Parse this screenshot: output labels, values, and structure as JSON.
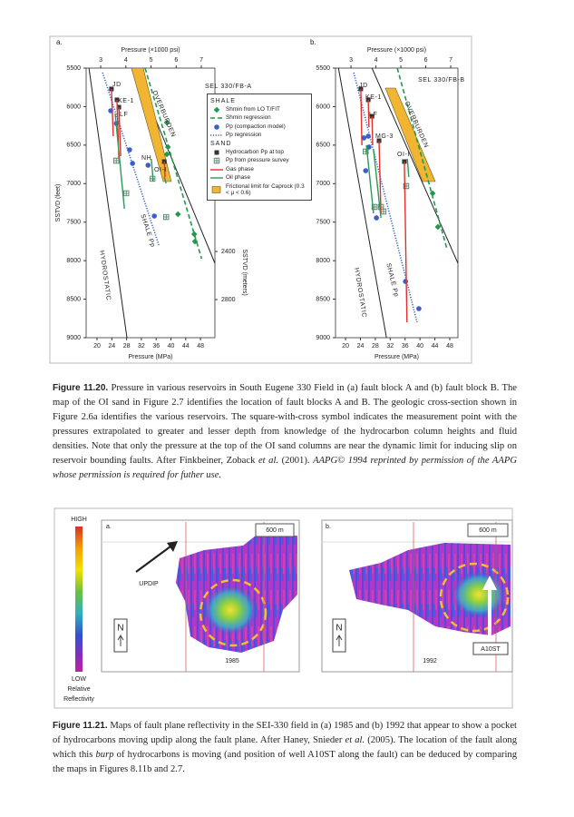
{
  "chart_data": [
    {
      "type": "scatter",
      "label": "a.",
      "x2label": "Pressure (×1000 psi)",
      "xlabel": "Pressure (MPa)",
      "ylabel": "SSTVD (feet)",
      "y2label": "SSTVD (meters)",
      "xlim": [
        17.05,
        51.9
      ],
      "xticks": [
        20,
        24,
        28,
        32,
        36,
        40,
        44,
        48
      ],
      "x2lim": [
        2.42,
        7.54
      ],
      "x2ticks": [
        3,
        4,
        5,
        6,
        7
      ],
      "ylim": [
        5500,
        9000
      ],
      "invert_y": true,
      "yticks": [
        5500,
        6000,
        6500,
        7000,
        7500,
        8000,
        8500,
        9000
      ],
      "y2lim": [
        875,
        3117
      ],
      "y2ticks": [
        2400,
        2800
      ],
      "legend": "upper right",
      "annotations": [
        "JD",
        "KE-1",
        "LF",
        "NH",
        "OI-I",
        "SHALE Pp",
        "HYDROSTATIC",
        "OVERBURDEN",
        "SEL 330/FB-A"
      ],
      "lines": [
        {
          "color": "#222222",
          "x": [
            17.8,
            28.1
          ],
          "values": [
            5500,
            9000
          ]
        },
        {
          "color": "#222222",
          "x": [
            30.1,
            51.9
          ],
          "values": [
            5500,
            8034
          ]
        }
      ],
      "series_groups": [
        {
          "title": "SHALE",
          "series": [
            {
              "name": "Shmin from LO T/FIT",
              "color": "#1f9a4c",
              "marker": "diamond",
              "x": [
                38.9,
                39.2,
                38.9,
                41.9,
                46.3,
                46.5
              ],
              "values": [
                6207,
                6525,
                6619,
                7397,
                7656,
                7751
              ]
            },
            {
              "name": "Shmin regression",
              "color": "#1f9a4c",
              "line": "dashed",
              "x": [
                33.0,
                48.3
              ],
              "values": [
                5500,
                7975
              ]
            },
            {
              "name": "Pp (compaction model)",
              "color": "#3a5fc8",
              "marker": "circle",
              "x": [
                23.7,
                25.2,
                28.8,
                29.6,
                33.8,
                35.5
              ],
              "values": [
                6054,
                6219,
                6561,
                6737,
                6761,
                7421
              ]
            },
            {
              "name": "Pp regression",
              "color": "#3a5fc8",
              "line": "dotted",
              "x": [
                21.5,
                36.7
              ],
              "values": [
                5559,
                7798
              ]
            }
          ]
        },
        {
          "title": "SAND",
          "series": [
            {
              "name": "Hydrocarbon Pp at top",
              "color": "#333333",
              "marker": "square",
              "x": [
                23.9,
                25.4,
                25.9,
                38.2
              ],
              "values": [
                5771,
                5912,
                6007,
                6714
              ]
            },
            {
              "name": "Pp from pressure survey",
              "color": "#3d7a5a",
              "marker": "square-cross",
              "x": [
                25.2,
                27.9,
                35.0,
                38.7
              ],
              "values": [
                6702,
                7126,
                6937,
                7433
              ]
            },
            {
              "name": "Gas phase",
              "color": "#e0302a",
              "line": "solid",
              "x": [
                23.9,
                24.4,
                null,
                25.4,
                25.9,
                null,
                25.9,
                26.4,
                null,
                38.2,
                38.4
              ],
              "values": [
                5771,
                6384,
                null,
                5912,
                6678,
                null,
                6007,
                6643,
                null,
                6714,
                6914
              ]
            },
            {
              "name": "Oil phase",
              "color": "#2a9a5a",
              "line": "solid",
              "x": [
                24.9,
                27.4,
                null,
                34.7,
                35.2,
                null,
                38.2,
                38.7
              ],
              "values": [
                6089,
                7327,
                null,
                6678,
                6973,
                null,
                6914,
                6997
              ]
            },
            {
              "name": "Frictional limit for Caprock (0.3 < μ < 0.6)",
              "color": "#f2b531",
              "kind": "polygon",
              "x": [
                29.3,
                32.5,
                40.1,
                37.9
              ],
              "values": [
                5500,
                5500,
                6973,
                6973
              ]
            }
          ]
        }
      ]
    },
    {
      "type": "scatter",
      "label": "b.",
      "x2label": "Pressure (×1000 psi)",
      "xlabel": "Pressure (MPa)",
      "xlim": [
        17.3,
        50.2
      ],
      "xticks": [
        20,
        24,
        28,
        32,
        36,
        40,
        44,
        48
      ],
      "x2lim": [
        2.38,
        7.29
      ],
      "x2ticks": [
        3,
        4,
        5,
        6,
        7
      ],
      "ylim": [
        5500,
        9000
      ],
      "invert_y": true,
      "yticks": [
        5500,
        6000,
        6500,
        7000,
        7500,
        8000,
        8500,
        9000
      ],
      "annotations": [
        "JD",
        "KE-1",
        "LF",
        "MG-3",
        "OI-I",
        "SHALE Pp",
        "HYDROSTATIC",
        "OVERBURDEN",
        "SEL 330/FB-B"
      ],
      "lines": [
        {
          "color": "#222222",
          "x": [
            18.1,
            31.0
          ],
          "values": [
            5500,
            9000
          ]
        },
        {
          "color": "#222222",
          "x": [
            27.1,
            50.2
          ],
          "values": [
            5500,
            8034
          ]
        }
      ],
      "series_groups": [
        {
          "series": [
            {
              "color": "#1f9a4c",
              "marker": "diamond",
              "x": [
                43.4,
                44.8
              ],
              "values": [
                7126,
                7562
              ]
            },
            {
              "color": "#1f9a4c",
              "line": "dashed",
              "x": [
                33.9,
                47.3
              ],
              "values": [
                5500,
                7857
              ]
            },
            {
              "color": "#3a5fc8",
              "marker": "circle",
              "x": [
                24.9,
                26.1,
                26.3,
                25.4,
                28.3,
                36.1,
                39.7
              ],
              "values": [
                6407,
                6384,
                6525,
                6832,
                7444,
                8270,
                8623
              ]
            },
            {
              "color": "#3a5fc8",
              "line": "dotted",
              "x": [
                22.2,
                39.2
              ],
              "values": [
                5559,
                8798
              ]
            },
            {
              "color": "#333333",
              "marker": "square",
              "x": [
                24.1,
                26.1,
                27.1,
                29.0,
                35.8
              ],
              "values": [
                5771,
                5912,
                6125,
                6443,
                6714
              ]
            },
            {
              "color": "#3d7a5a",
              "marker": "square-cross",
              "x": [
                25.4,
                27.8,
                29.5,
                30.2,
                36.3
              ],
              "values": [
                6584,
                7303,
                7303,
                7362,
                7032
              ]
            },
            {
              "color": "#e0302a",
              "line": "solid",
              "x": [
                24.1,
                24.4,
                null,
                26.1,
                26.3,
                null,
                27.1,
                27.3,
                null,
                29.0,
                29.5,
                null,
                35.8,
                36.5
              ],
              "values": [
                5771,
                6502,
                null,
                5912,
                6266,
                null,
                6125,
                6502,
                null,
                6443,
                7386,
                null,
                6714,
                8800
              ]
            },
            {
              "color": "#2a9a5a",
              "line": "solid",
              "x": [
                25.6,
                27.5,
                null,
                27.5,
                29.5,
                null,
                36.6,
                37.0
              ],
              "values": [
                6502,
                7386,
                null,
                6561,
                7444,
                null,
                6678,
                6914
              ]
            },
            {
              "color": "#f2b531",
              "kind": "polygon",
              "x": [
                30.7,
                33.4,
                44.1,
                40.7
              ],
              "values": [
                5759,
                5759,
                6973,
                6973
              ]
            }
          ]
        }
      ]
    }
  ],
  "captions": [
    {
      "label": "Figure 11.20.",
      "parts": [
        "Pressure in various reservoirs in South Eugene 330 Field in (a) fault block A and (b) fault block B. The map of the OI sand in Figure 2.7 identifies the location of fault blocks A and B. The geologic cross-section shown in Figure 2.6a identifies the various reservoirs. The square-with-cross symbol indicates the measurement point with the pressures extrapolated to greater and lesser depth from knowledge of the hydrocarbon column heights and fluid densities. Note that only the pressure at the top of the OI sand columns are near the dynamic limit for inducing slip on reservoir bounding faults. After Finkbeiner, Zoback ",
        "et al.",
        " (2001). ",
        "AAPG© 1994 reprinted by permission of the AAPG whose permission is required for futher use."
      ]
    },
    {
      "label": "Figure 11.21.",
      "parts": [
        "Maps of fault plane reflectivity in the SEI-330 field in (a) 1985 and (b) 1992 that appear to show a pocket of hydrocarbons moving updip along the fault plane. After Haney, Snieder ",
        "et al.",
        " (2005). The location of the fault along which this ",
        "burp",
        " of hydrocarbons is moving (and position of well A10ST along the fault) can be deduced by comparing the maps in Figures 8.11b and 2.7."
      ]
    }
  ],
  "figure_11_21": {
    "colorbar": {
      "high": "HIGH",
      "low": "LOW",
      "label_1": "Relative",
      "label_2": "Reflectivity"
    },
    "panels": [
      {
        "label": "a.",
        "scale": "600 m",
        "north": "N",
        "year": "1985",
        "arrow": "UPDIP"
      },
      {
        "label": "b.",
        "scale": "600 m",
        "north": "N",
        "year": "1992",
        "well": "A10ST"
      }
    ]
  }
}
